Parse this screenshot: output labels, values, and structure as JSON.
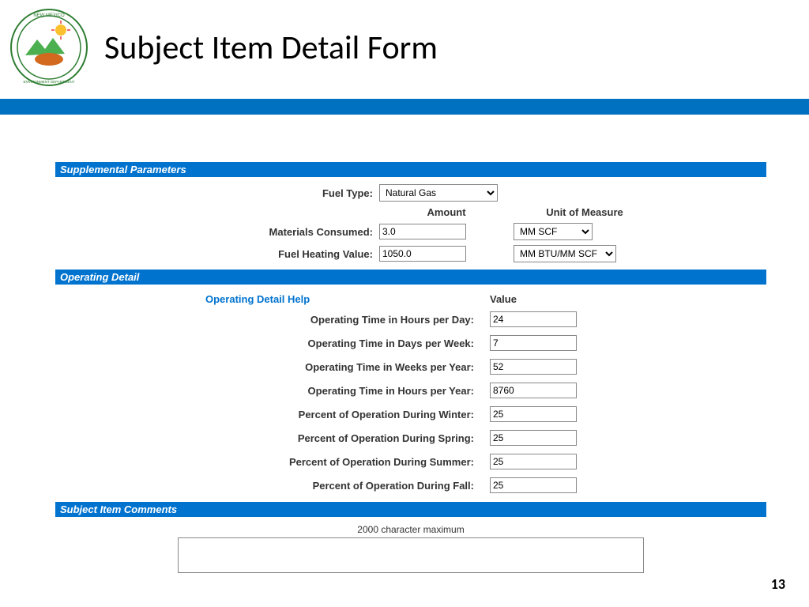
{
  "page": {
    "title": "Subject Item Detail Form",
    "number": "13"
  },
  "colors": {
    "title_bar": "#0070c0",
    "section_header_bg": "#0073cf",
    "section_header_fg": "#ffffff",
    "link_blue": "#0073cf"
  },
  "sections": {
    "supplemental": {
      "header": "Supplemental Parameters",
      "fuel_type_label": "Fuel Type:",
      "fuel_type_value": "Natural Gas",
      "amount_header": "Amount",
      "unit_header": "Unit of Measure",
      "materials_consumed_label": "Materials Consumed:",
      "materials_consumed_amount": "3.0",
      "materials_consumed_unit": "MM SCF",
      "fuel_heating_label": "Fuel Heating Value:",
      "fuel_heating_amount": "1050.0",
      "fuel_heating_unit": "MM BTU/MM SCF"
    },
    "operating": {
      "header": "Operating Detail",
      "help_header": "Operating Detail Help",
      "value_header": "Value",
      "rows": [
        {
          "label": "Operating Time in Hours per Day:",
          "value": "24"
        },
        {
          "label": "Operating Time in Days per Week:",
          "value": "7"
        },
        {
          "label": "Operating Time in Weeks per Year:",
          "value": "52"
        },
        {
          "label": "Operating Time in Hours per Year:",
          "value": "8760"
        },
        {
          "label": "Percent of Operation During Winter:",
          "value": "25"
        },
        {
          "label": "Percent of Operation During Spring:",
          "value": "25"
        },
        {
          "label": "Percent of Operation During Summer:",
          "value": "25"
        },
        {
          "label": "Percent of Operation During Fall:",
          "value": "25"
        }
      ]
    },
    "comments": {
      "header": "Subject Item Comments",
      "note": "2000 character maximum",
      "value": ""
    }
  }
}
